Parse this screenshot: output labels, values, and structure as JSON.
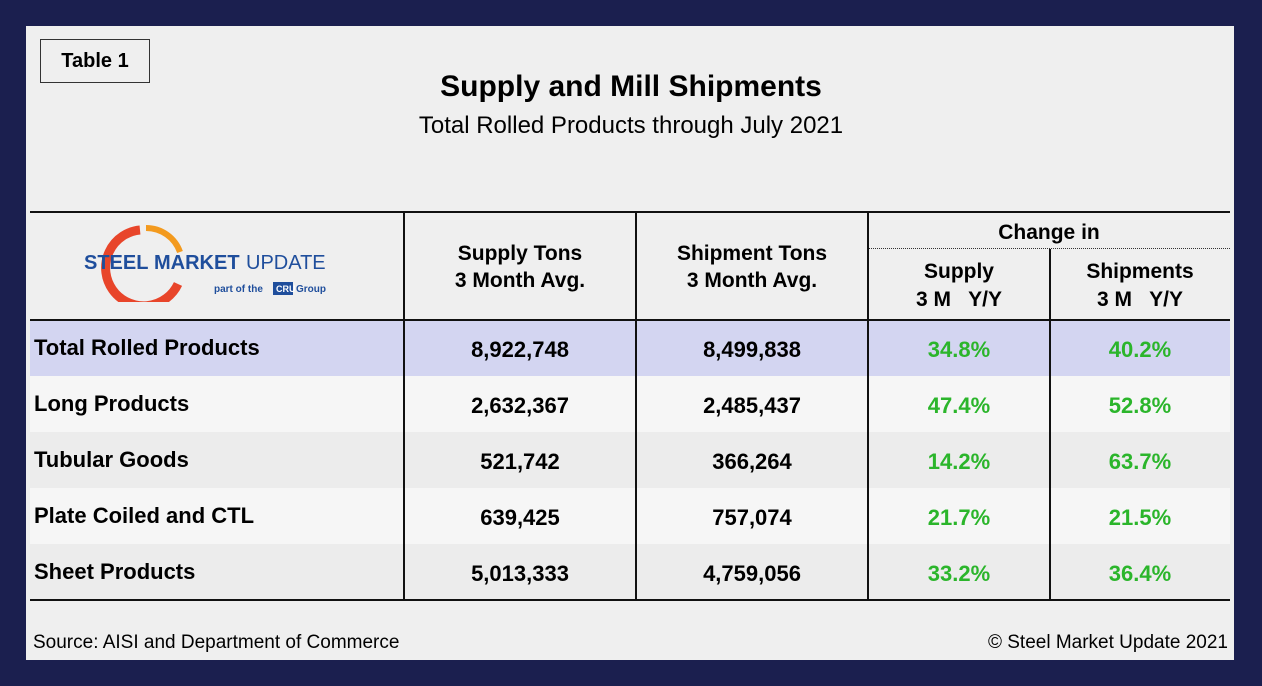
{
  "label": "Table 1",
  "title": "Supply and Mill Shipments",
  "subtitle": "Total Rolled Products through July 2021",
  "logo": {
    "brand": [
      "STEEL",
      "MARKET",
      "UPDATE"
    ],
    "tagline": [
      "part of the",
      "CRU",
      "Group"
    ]
  },
  "table": {
    "headers": [
      [
        "Supply Tons",
        "3 Month Avg."
      ],
      [
        "Shipment Tons",
        "3 Month Avg."
      ]
    ],
    "group_header": "Change in",
    "sub_headers": [
      [
        "Supply",
        "3 M   Y/Y"
      ],
      [
        "Shipments",
        "3 M   Y/Y"
      ]
    ],
    "rows": [
      [
        "Total Rolled Products",
        "8,922,748",
        "8,499,838",
        "34.8%",
        "40.2%"
      ],
      [
        "Long Products",
        "2,632,367",
        "2,485,437",
        "47.4%",
        "52.8%"
      ],
      [
        "Tubular Goods",
        "521,742",
        "366,264",
        "14.2%",
        "63.7%"
      ],
      [
        "Plate Coiled and CTL",
        "639,425",
        "757,074",
        "21.7%",
        "21.5%"
      ],
      [
        "Sheet Products",
        "5,013,333",
        "4,759,056",
        "33.2%",
        "36.4%"
      ]
    ]
  },
  "footer": {
    "source": "Source: AISI and Department of Commerce",
    "copyright": "© Steel Market Update 2021"
  }
}
